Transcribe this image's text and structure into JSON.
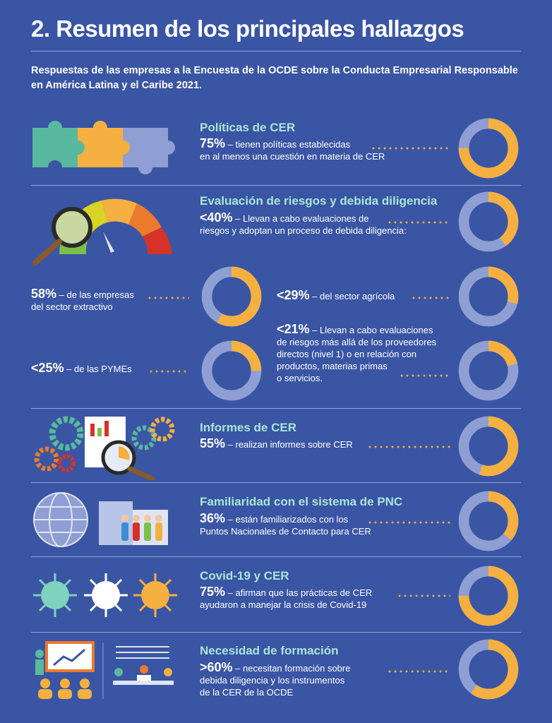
{
  "header": {
    "title": "2. Resumen de los principales hallazgos",
    "subtitle": "Respuestas de las empresas a la Encuesta de la OCDE sobre la Conducta Empresarial Responsable en América Latina y el Caribe 2021."
  },
  "colors": {
    "background": "#3a55a3",
    "accent": "#f5b041",
    "ring": "#8f9fd3",
    "heading": "#a8e6db"
  },
  "sections": {
    "politicas": {
      "title": "Políticas de CER",
      "pct": "75%",
      "text": " – tienen políticas establecidas",
      "text2": "en al menos una cuestión en materia de CER",
      "value": 75,
      "icon": "puzzle-icon"
    },
    "riesgos": {
      "title": "Evaluación de riesgos y debida diligencia",
      "pct": "<40%",
      "text": " – Llevan a cabo evaluaciones de",
      "text2": "riesgos y adoptan un proceso de debida diligencia:",
      "value": 40,
      "icon": "risk-gauge-icon"
    },
    "extractivo": {
      "pct": "58%",
      "text": " – de las empresas",
      "text2": "del sector extractivo",
      "value": 58
    },
    "agricola": {
      "pct": "<29%",
      "text": " – del sector agrícola",
      "value": 29
    },
    "pymes": {
      "pct": "<25%",
      "text": " – de las PYMEs",
      "value": 25
    },
    "proveedores": {
      "pct": "<21%",
      "text": " – Llevan a cabo evaluaciones",
      "lines": [
        "de riesgos más allá de los proveedores",
        "directos (nivel 1) o en relación con",
        "productos, materias primas",
        "o servicios."
      ],
      "value": 21
    },
    "informes": {
      "title": "Informes de CER",
      "pct": "55%",
      "text": " – realizan informes sobre CER",
      "value": 55,
      "icon": "gears-report-icon"
    },
    "pnc": {
      "title": "Familiaridad con el sistema de PNC",
      "pct": "36%",
      "text": " – están familiarizados con los",
      "text2": "Puntos Nacionales de Contacto para CER",
      "value": 36,
      "icon": "globe-people-icon"
    },
    "covid": {
      "title": "Covid-19 y CER",
      "pct": "75%",
      "text": " – afirman que las prácticas de CER",
      "text2": "ayudaron a manejar la crisis de Covid-19",
      "value": 75,
      "icon": "virus-icon"
    },
    "formacion": {
      "title": "Necesidad de formación",
      "pct": ">60%",
      "text": " – necesitan formación sobre",
      "text2": "debida diligencia y los instrumentos",
      "text3": "de la CER de la OCDE",
      "value": 60,
      "icon": "training-icon"
    }
  }
}
